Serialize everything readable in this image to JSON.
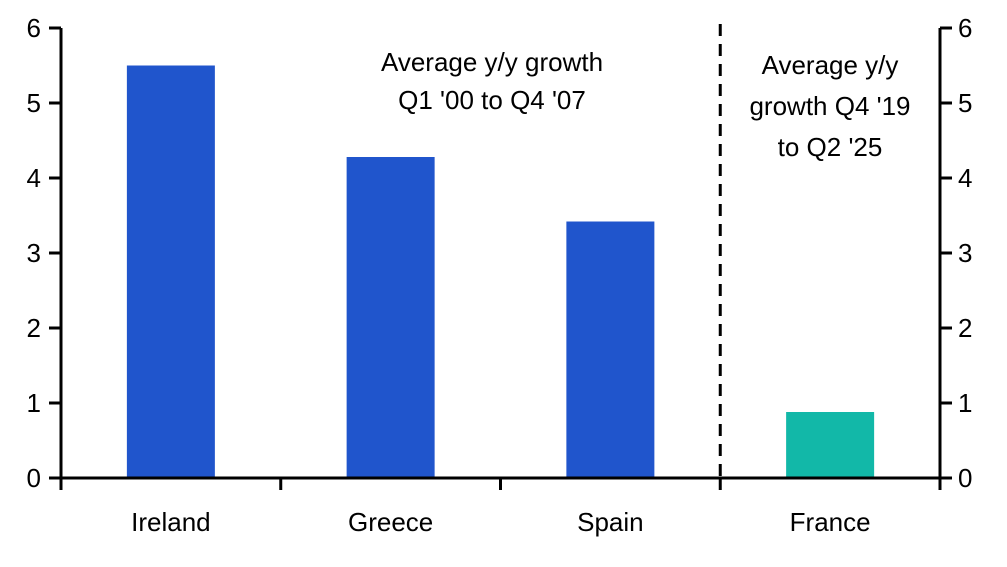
{
  "chart_data": {
    "type": "bar",
    "categories": [
      "Ireland",
      "Greece",
      "Spain",
      "France"
    ],
    "values": [
      5.5,
      4.28,
      3.42,
      0.88
    ],
    "bar_colors": [
      "#2055cc",
      "#2055cc",
      "#2055cc",
      "#12b8a8"
    ],
    "ylim": [
      0,
      6
    ],
    "yticks": [
      0,
      1,
      2,
      3,
      4,
      5,
      6
    ],
    "y_axes": [
      "left",
      "right"
    ],
    "divider": "dashed line between Spain and France",
    "annotations": [
      {
        "lines": [
          "Average y/y growth",
          "Q1 '00 to Q4 '07"
        ]
      },
      {
        "lines": [
          "Average y/y",
          "growth Q4 '19",
          "to Q2 '25"
        ]
      }
    ],
    "grid": false,
    "legend": "none"
  }
}
